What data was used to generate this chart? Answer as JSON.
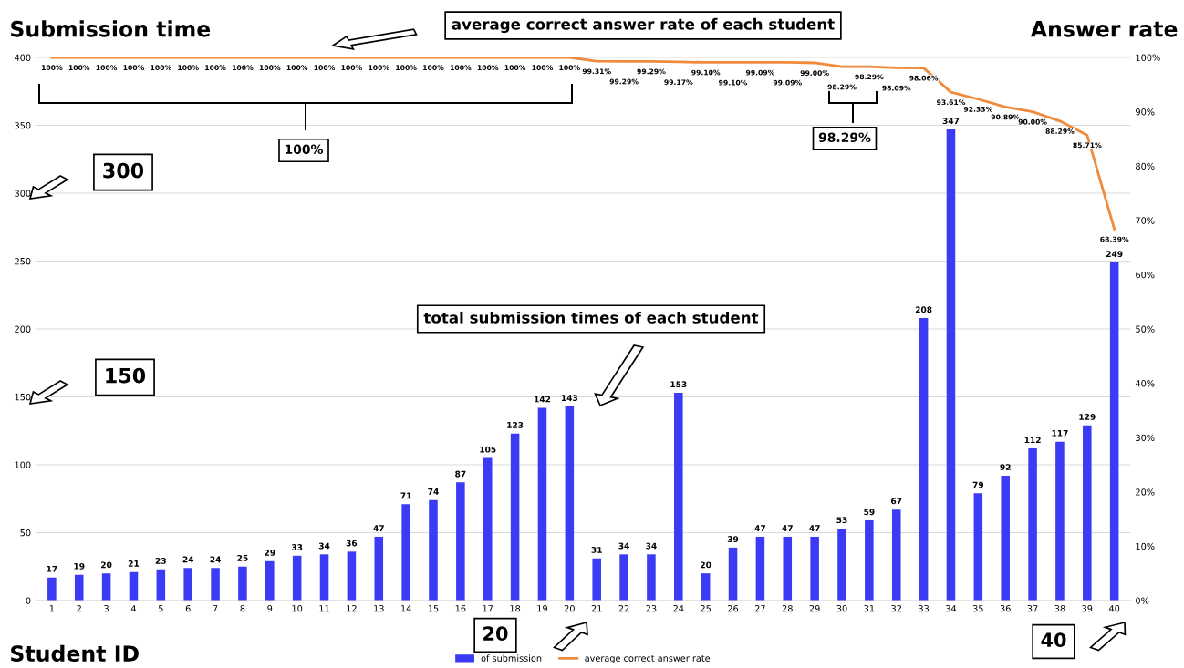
{
  "chart_data": {
    "type": "bar",
    "ylabel": "Submission time",
    "y2label": "Answer rate",
    "xlabel": "Student ID",
    "categories": [
      "1",
      "2",
      "3",
      "4",
      "5",
      "6",
      "7",
      "8",
      "9",
      "10",
      "11",
      "12",
      "13",
      "14",
      "15",
      "16",
      "17",
      "18",
      "19",
      "20",
      "21",
      "22",
      "23",
      "24",
      "25",
      "26",
      "27",
      "28",
      "29",
      "30",
      "31",
      "32",
      "33",
      "34",
      "35",
      "36",
      "37",
      "38",
      "39",
      "40"
    ],
    "series": [
      {
        "name": "of submission",
        "color": "#3b3bf5",
        "values": [
          17,
          19,
          20,
          21,
          23,
          24,
          24,
          25,
          29,
          33,
          34,
          36,
          47,
          71,
          74,
          87,
          105,
          123,
          142,
          143,
          31,
          34,
          34,
          153,
          20,
          39,
          47,
          47,
          47,
          53,
          59,
          67,
          208,
          347,
          79,
          92,
          112,
          117,
          129,
          249
        ],
        "value_labels": [
          "17",
          "19",
          "20",
          "21",
          "23",
          "24",
          "24",
          "25",
          "29",
          "33",
          "34",
          "36",
          "47",
          "71",
          "74",
          "87",
          "105",
          "123",
          "142",
          "143",
          "31",
          "34",
          "34",
          "153",
          "20",
          "39",
          "47",
          "47",
          "47",
          "53",
          "59",
          "67",
          "208",
          "347",
          "79",
          "92",
          "112",
          "117",
          "129",
          "249"
        ]
      },
      {
        "name": "average correct answer rate",
        "type": "line",
        "axis": "y2",
        "color": "#f08a3c",
        "values": [
          100,
          100,
          100,
          100,
          100,
          100,
          100,
          100,
          100,
          100,
          100,
          100,
          100,
          100,
          100,
          100,
          100,
          100,
          100,
          100,
          99.31,
          99.29,
          99.29,
          99.17,
          99.1,
          99.1,
          99.09,
          99.09,
          99.0,
          98.29,
          98.29,
          98.09,
          98.06,
          93.61,
          92.33,
          90.89,
          90.0,
          88.29,
          85.71,
          68.39
        ],
        "value_labels": [
          "100%",
          "100%",
          "100%",
          "100%",
          "100%",
          "100%",
          "100%",
          "100%",
          "100%",
          "100%",
          "100%",
          "100%",
          "100%",
          "100%",
          "100%",
          "100%",
          "100%",
          "100%",
          "100%",
          "100%",
          "99.31%",
          "99.29%",
          "99.29%",
          "99.17%",
          "99.10%",
          "99.10%",
          "99.09%",
          "99.09%",
          "99.00%",
          "98.29%",
          "98.29%",
          "98.09%",
          "98.06%",
          "93.61%",
          "92.33%",
          "90.89%",
          "90.00%",
          "88.29%",
          "85.71%",
          "68.39%"
        ]
      }
    ],
    "ylim": [
      0,
      400
    ],
    "yticks": [
      0,
      50,
      100,
      150,
      200,
      250,
      300,
      350,
      400
    ],
    "y2lim": [
      0,
      100
    ],
    "y2ticks": [
      {
        "value": 0,
        "label": "0%"
      },
      {
        "value": 10,
        "label": "10%"
      },
      {
        "value": 20,
        "label": "20%"
      },
      {
        "value": 30,
        "label": "30%"
      },
      {
        "value": 40,
        "label": "40%"
      },
      {
        "value": 50,
        "label": "50%"
      },
      {
        "value": 60,
        "label": "60%"
      },
      {
        "value": 70,
        "label": "70%"
      },
      {
        "value": 80,
        "label": "80%"
      },
      {
        "value": 90,
        "label": "90%"
      },
      {
        "value": 100,
        "label": "100%"
      }
    ],
    "grid": "y",
    "legend": "bottom",
    "annotations": [
      "average correct answer rate of each student",
      "100%",
      "98.29%",
      "300",
      "150",
      "total submission times of each student",
      "20",
      "40"
    ]
  }
}
